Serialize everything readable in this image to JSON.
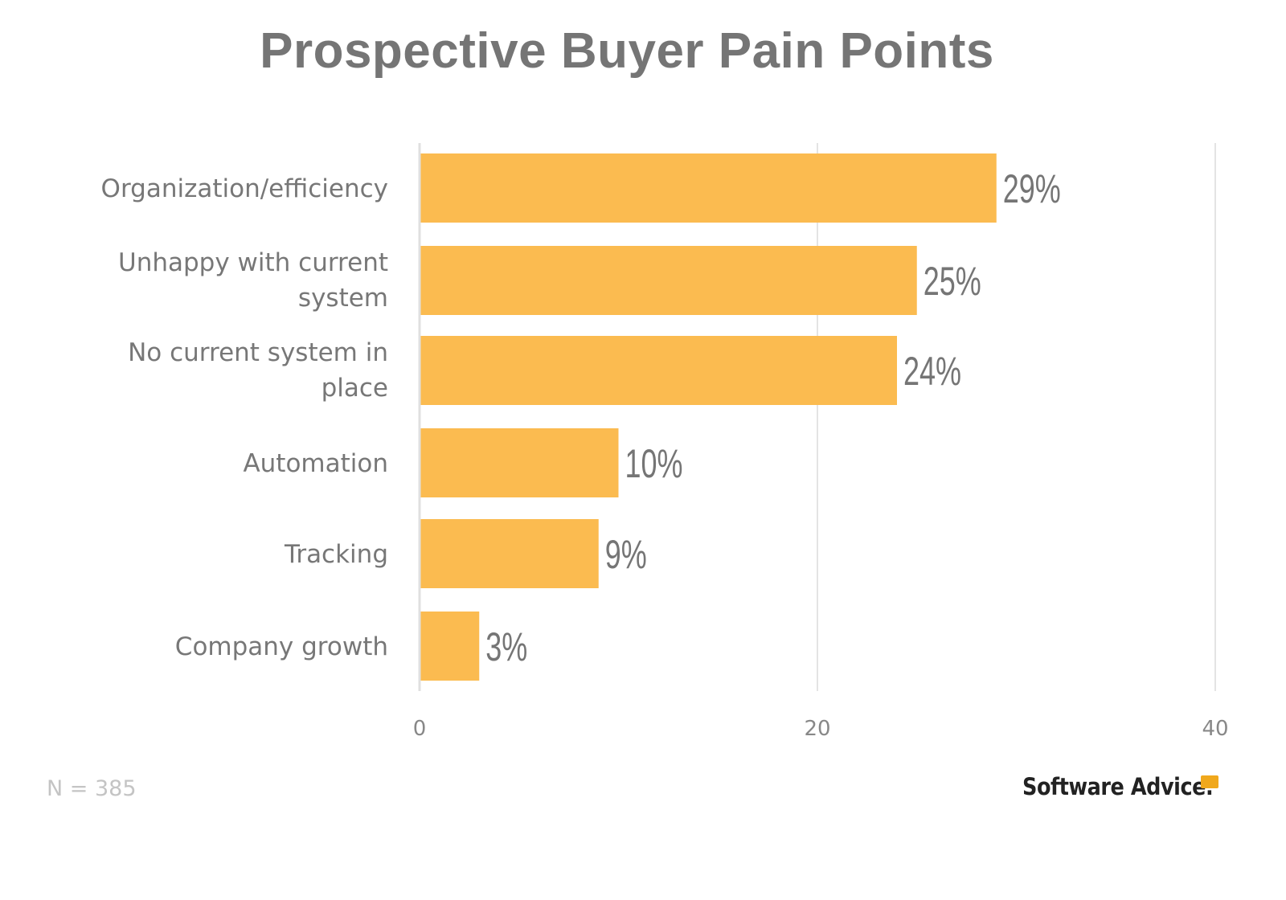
{
  "chart_data": {
    "type": "bar",
    "orientation": "horizontal",
    "title": "Prospective Buyer Pain Points",
    "categories": [
      "Organization/efficiency",
      "Unhappy with current system",
      "No current system in place",
      "Automation",
      "Tracking",
      "Company growth"
    ],
    "values": [
      29,
      25,
      24,
      10,
      9,
      3
    ],
    "data_labels": [
      "29%",
      "25%",
      "24%",
      "10%",
      "9%",
      "3%"
    ],
    "xlim": [
      0,
      40
    ],
    "xticks": [
      "0",
      "20",
      "40"
    ],
    "grid": true,
    "bar_color": "#fbbb50",
    "xlabel": "",
    "ylabel": ""
  },
  "footnote": "N = 385",
  "logo": "Software Advice."
}
